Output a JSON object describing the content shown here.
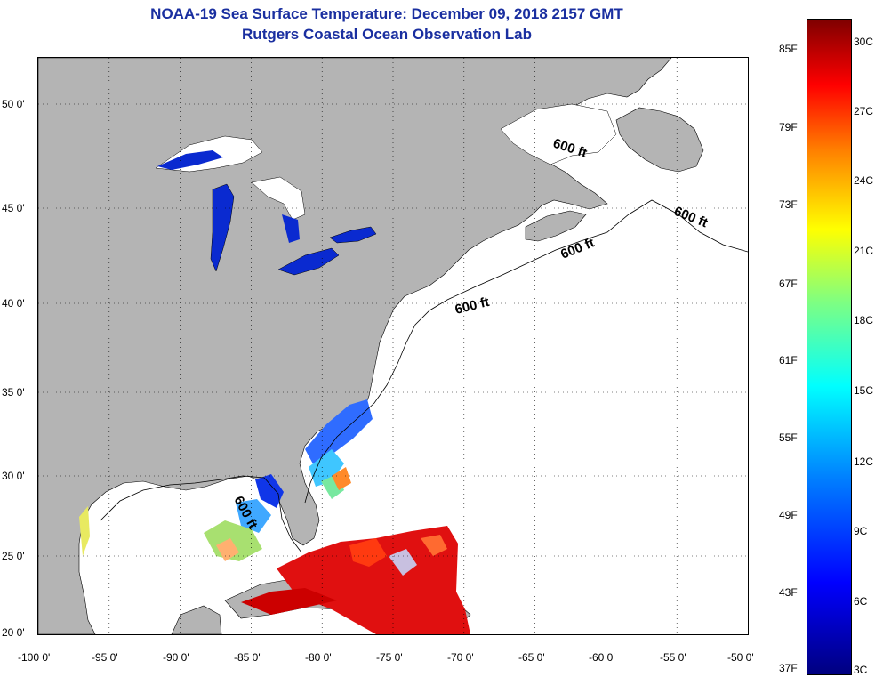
{
  "header": {
    "title": "NOAA-19 Sea Surface Temperature:  December 09, 2018 2157 GMT",
    "subtitle": "Rutgers Coastal Ocean Observation Lab"
  },
  "axes": {
    "x_ticks": [
      "-100 0'",
      "-95 0'",
      "-90 0'",
      "-85 0'",
      "-80 0'",
      "-75 0'",
      "-70 0'",
      "-65 0'",
      "-60 0'",
      "-55 0'",
      "-50 0'"
    ],
    "y_ticks": [
      "50 0'",
      "45 0'",
      "40 0'",
      "35 0'",
      "30 0'",
      "25 0'",
      "20 0'"
    ]
  },
  "colorbar": {
    "fahrenheit": [
      "85F",
      "79F",
      "73F",
      "67F",
      "61F",
      "55F",
      "49F",
      "43F",
      "37F"
    ],
    "celsius": [
      "30C",
      "27C",
      "24C",
      "21C",
      "18C",
      "15C",
      "12C",
      "9C",
      "6C",
      "3C"
    ]
  },
  "contour_labels": [
    "600 ft",
    "600 ft",
    "600 ft",
    "600 ft",
    "600 ft"
  ],
  "colors": {
    "land": "#b4b4b4",
    "no_data_ocean": "#ffffff",
    "title": "#1a2fa0"
  }
}
